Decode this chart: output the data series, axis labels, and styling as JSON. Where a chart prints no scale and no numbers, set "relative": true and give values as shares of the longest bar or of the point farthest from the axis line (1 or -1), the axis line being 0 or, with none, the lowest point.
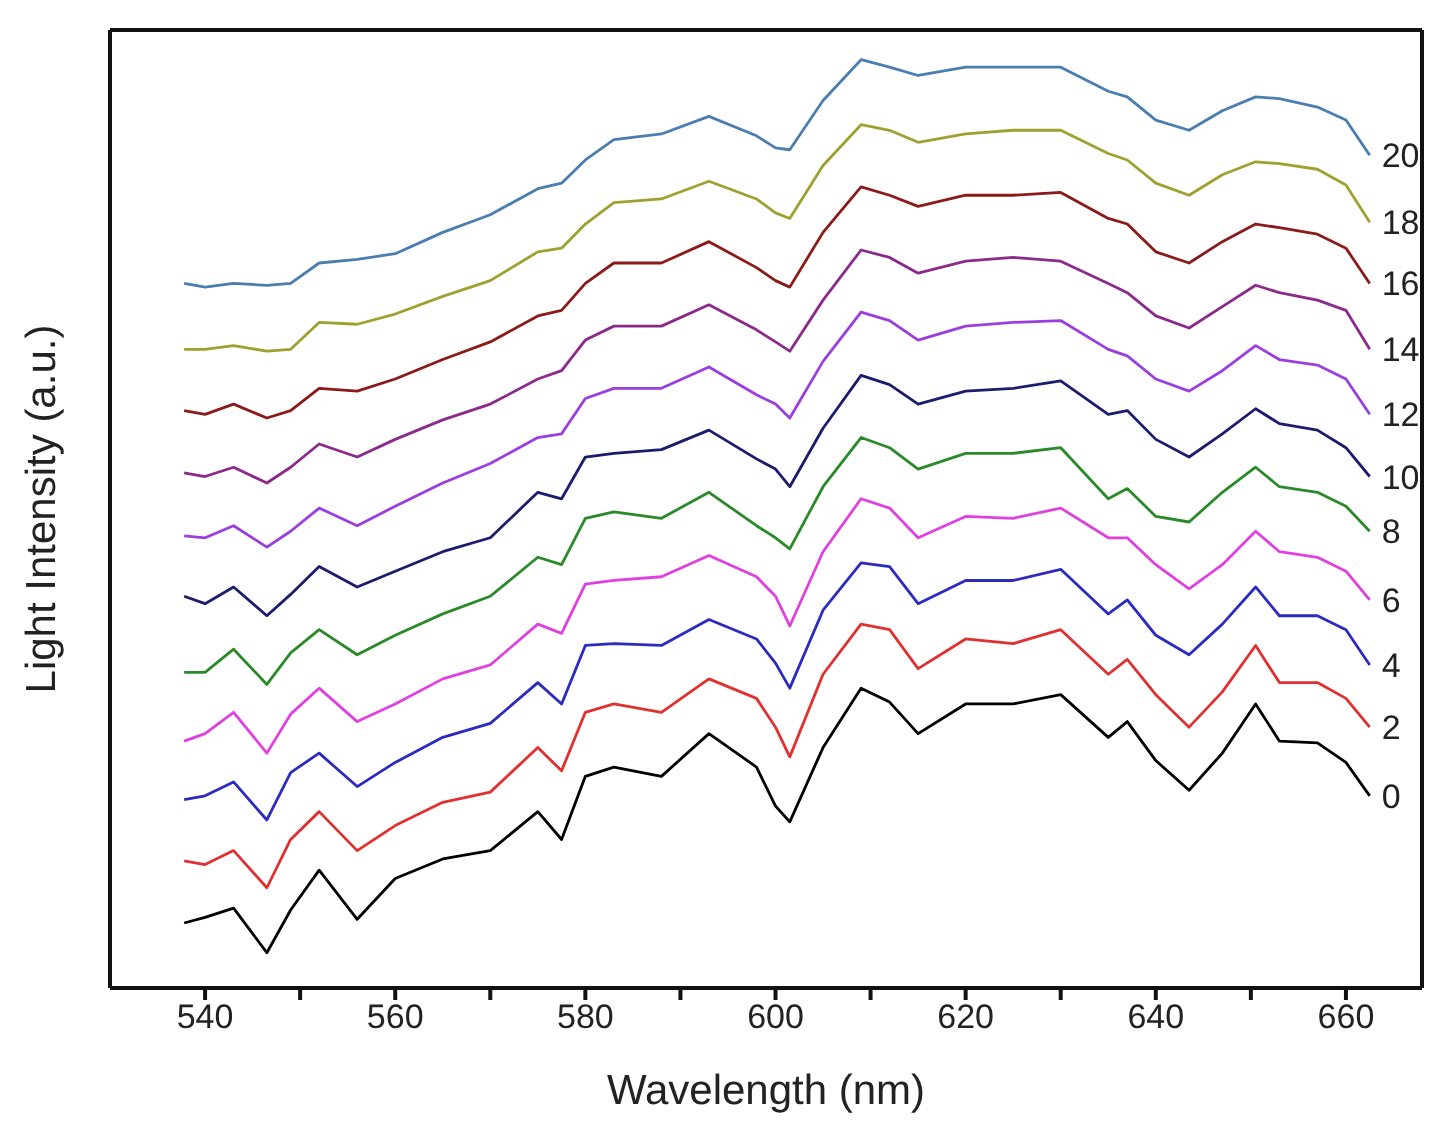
{
  "chart_data": {
    "type": "line",
    "xlabel": "Wavelength (nm)",
    "ylabel": "Light Intensity (a.u.)",
    "relative": true,
    "legend": false,
    "grid": false,
    "marker": "none",
    "line_style": "solid",
    "xlim": [
      530,
      668
    ],
    "xticks": [
      540,
      {
        "value": 550,
        "label": null
      },
      560,
      {
        "value": 570,
        "label": null
      },
      580,
      {
        "value": 590,
        "label": null
      },
      600,
      {
        "value": 610,
        "label": null
      },
      620,
      {
        "value": 630,
        "label": null
      },
      640,
      {
        "value": 650,
        "label": null
      },
      660
    ],
    "x": [
      537.8,
      540,
      543,
      546.5,
      549,
      552,
      556,
      560,
      565,
      570,
      575,
      577.5,
      580,
      583,
      588,
      593,
      598,
      600,
      601.5,
      605,
      609,
      612,
      615,
      620,
      625,
      630,
      635,
      637,
      640,
      643.5,
      647,
      650.5,
      653,
      657,
      660,
      662.5
    ],
    "series": [
      {
        "name": "0",
        "color": "#000000",
        "values": [
          0.07,
          0.076,
          0.086,
          0.038,
          0.084,
          0.127,
          0.074,
          0.118,
          0.139,
          0.148,
          0.19,
          0.16,
          0.228,
          0.238,
          0.228,
          0.274,
          0.238,
          0.196,
          0.179,
          0.259,
          0.323,
          0.308,
          0.274,
          0.306,
          0.306,
          0.316,
          0.27,
          0.287,
          0.245,
          0.213,
          0.253,
          0.306,
          0.266,
          0.264,
          0.243,
          0.207
        ]
      },
      {
        "name": "2",
        "color": "#e03030",
        "values": [
          0.137,
          0.133,
          0.148,
          0.108,
          0.16,
          0.19,
          0.148,
          0.175,
          0.2,
          0.211,
          0.259,
          0.234,
          0.297,
          0.306,
          0.297,
          0.333,
          0.312,
          0.281,
          0.249,
          0.338,
          0.392,
          0.386,
          0.344,
          0.376,
          0.371,
          0.386,
          0.338,
          0.354,
          0.316,
          0.281,
          0.319,
          0.369,
          0.329,
          0.329,
          0.312,
          0.281
        ]
      },
      {
        "name": "4",
        "color": "#2b2bc0",
        "values": [
          0.203,
          0.207,
          0.222,
          0.181,
          0.232,
          0.253,
          0.217,
          0.243,
          0.27,
          0.285,
          0.329,
          0.306,
          0.369,
          0.371,
          0.369,
          0.397,
          0.376,
          0.35,
          0.323,
          0.407,
          0.458,
          0.454,
          0.414,
          0.439,
          0.439,
          0.451,
          0.403,
          0.418,
          0.38,
          0.359,
          0.392,
          0.432,
          0.401,
          0.401,
          0.386,
          0.348
        ]
      },
      {
        "name": "6",
        "color": "#e040e0",
        "values": [
          0.266,
          0.274,
          0.297,
          0.253,
          0.295,
          0.323,
          0.287,
          0.306,
          0.333,
          0.348,
          0.392,
          0.382,
          0.435,
          0.439,
          0.443,
          0.466,
          0.443,
          0.422,
          0.39,
          0.47,
          0.527,
          0.517,
          0.485,
          0.508,
          0.506,
          0.517,
          0.485,
          0.485,
          0.456,
          0.43,
          0.456,
          0.492,
          0.47,
          0.464,
          0.449,
          0.418
        ]
      },
      {
        "name": "8",
        "color": "#2a8a2a",
        "values": [
          0.34,
          0.34,
          0.365,
          0.327,
          0.361,
          0.386,
          0.359,
          0.38,
          0.403,
          0.422,
          0.464,
          0.456,
          0.506,
          0.513,
          0.506,
          0.534,
          0.498,
          0.485,
          0.473,
          0.54,
          0.593,
          0.582,
          0.559,
          0.576,
          0.576,
          0.582,
          0.527,
          0.538,
          0.508,
          0.502,
          0.534,
          0.561,
          0.54,
          0.534,
          0.519,
          0.492
        ]
      },
      {
        "name": "10",
        "color": "#1c1c6e",
        "values": [
          0.422,
          0.414,
          0.432,
          0.401,
          0.424,
          0.454,
          0.432,
          0.449,
          0.47,
          0.485,
          0.534,
          0.527,
          0.572,
          0.576,
          0.58,
          0.601,
          0.57,
          0.559,
          0.54,
          0.603,
          0.66,
          0.65,
          0.629,
          0.643,
          0.646,
          0.654,
          0.618,
          0.622,
          0.591,
          0.572,
          0.597,
          0.624,
          0.608,
          0.601,
          0.582,
          0.551
        ]
      },
      {
        "name": "12",
        "color": "#9a3ee0",
        "values": [
          0.487,
          0.485,
          0.498,
          0.475,
          0.492,
          0.517,
          0.498,
          0.519,
          0.544,
          0.565,
          0.593,
          0.597,
          0.635,
          0.646,
          0.646,
          0.669,
          0.639,
          0.629,
          0.614,
          0.675,
          0.728,
          0.719,
          0.698,
          0.713,
          0.717,
          0.719,
          0.688,
          0.681,
          0.656,
          0.643,
          0.665,
          0.692,
          0.677,
          0.671,
          0.656,
          0.618
        ]
      },
      {
        "name": "14",
        "color": "#8b2a8b",
        "values": [
          0.555,
          0.551,
          0.561,
          0.544,
          0.561,
          0.586,
          0.572,
          0.591,
          0.612,
          0.629,
          0.656,
          0.665,
          0.698,
          0.713,
          0.713,
          0.736,
          0.709,
          0.696,
          0.686,
          0.741,
          0.795,
          0.787,
          0.77,
          0.783,
          0.787,
          0.783,
          0.759,
          0.749,
          0.724,
          0.711,
          0.734,
          0.757,
          0.749,
          0.741,
          0.73,
          0.688
        ]
      },
      {
        "name": "16",
        "color": "#8b1a1a",
        "values": [
          0.622,
          0.618,
          0.629,
          0.614,
          0.622,
          0.646,
          0.643,
          0.656,
          0.677,
          0.696,
          0.724,
          0.73,
          0.759,
          0.781,
          0.781,
          0.804,
          0.776,
          0.762,
          0.755,
          0.814,
          0.863,
          0.854,
          0.842,
          0.854,
          0.854,
          0.857,
          0.829,
          0.823,
          0.793,
          0.781,
          0.804,
          0.823,
          0.819,
          0.812,
          0.797,
          0.759
        ]
      },
      {
        "name": "18",
        "color": "#a0a030",
        "values": [
          0.688,
          0.688,
          0.692,
          0.686,
          0.688,
          0.717,
          0.715,
          0.726,
          0.745,
          0.762,
          0.793,
          0.797,
          0.823,
          0.846,
          0.85,
          0.869,
          0.85,
          0.835,
          0.829,
          0.886,
          0.93,
          0.924,
          0.911,
          0.92,
          0.924,
          0.924,
          0.899,
          0.892,
          0.867,
          0.854,
          0.876,
          0.89,
          0.888,
          0.882,
          0.865,
          0.825
        ]
      },
      {
        "name": "20",
        "color": "#4a7eb0",
        "values": [
          0.759,
          0.755,
          0.759,
          0.757,
          0.759,
          0.781,
          0.785,
          0.791,
          0.814,
          0.833,
          0.861,
          0.867,
          0.892,
          0.914,
          0.92,
          0.939,
          0.918,
          0.905,
          0.903,
          0.956,
          1,
          0.992,
          0.983,
          0.992,
          0.992,
          0.992,
          0.966,
          0.96,
          0.935,
          0.924,
          0.945,
          0.96,
          0.958,
          0.949,
          0.935,
          0.897
        ]
      }
    ]
  }
}
